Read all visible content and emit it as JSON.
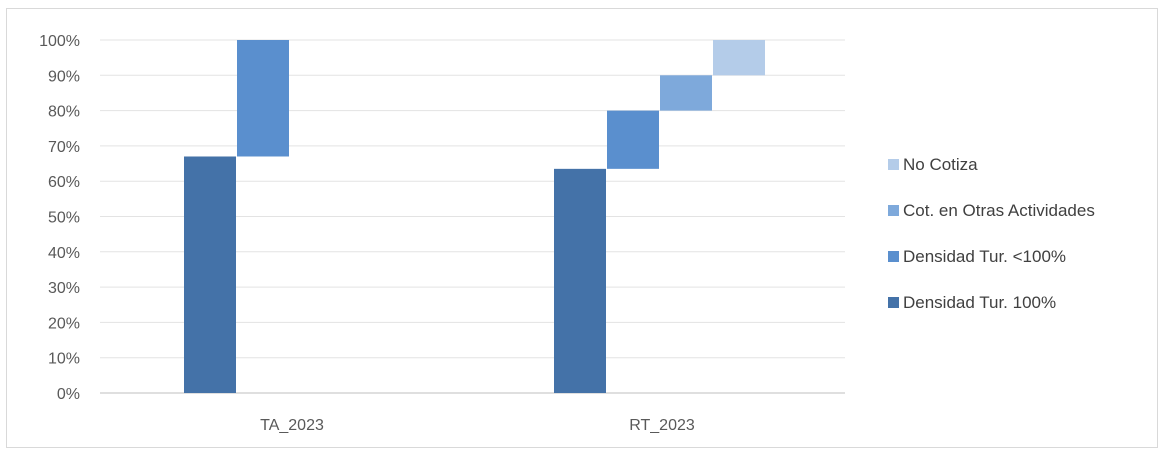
{
  "chart_data": {
    "type": "bar",
    "subtype": "waterfall-stacked",
    "categories": [
      "TA_2023",
      "RT_2023"
    ],
    "series": [
      {
        "name": "Densidad Tur. 100%",
        "color": "#4472a8",
        "values": [
          67,
          63.5
        ]
      },
      {
        "name": "Densidad Tur. <100%",
        "color": "#5a8fce",
        "values": [
          33,
          16.5
        ]
      },
      {
        "name": "Cot. en Otras Actividades",
        "color": "#7ea9db",
        "values": [
          0,
          10
        ]
      },
      {
        "name": "No Cotiza",
        "color": "#b4cce9",
        "values": [
          0,
          10
        ]
      }
    ],
    "ylim": [
      0,
      100
    ],
    "yticks": [
      "0%",
      "10%",
      "20%",
      "30%",
      "40%",
      "50%",
      "60%",
      "70%",
      "80%",
      "90%",
      "100%"
    ],
    "grid": true,
    "legend_position": "right",
    "legend_order": [
      "No Cotiza",
      "Cot. en Otras Actividades",
      "Densidad Tur. <100%",
      "Densidad Tur. 100%"
    ],
    "title": "",
    "xlabel": "",
    "ylabel": ""
  }
}
